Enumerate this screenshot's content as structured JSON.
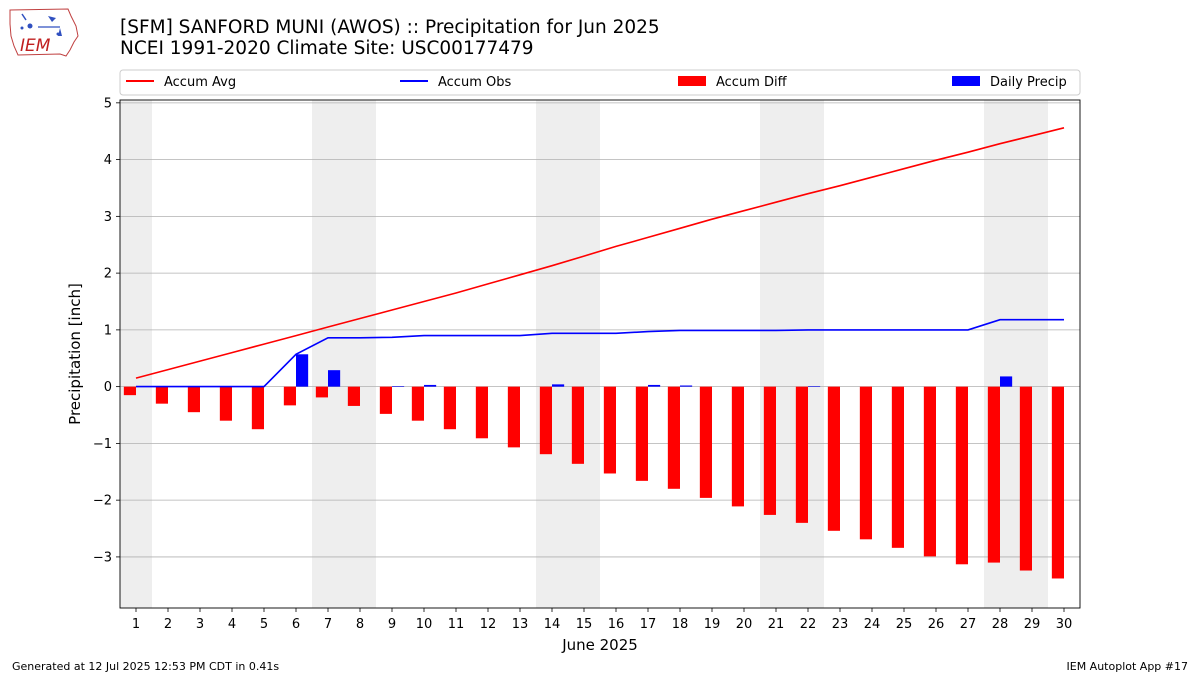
{
  "header": {
    "logo_text": "IEM",
    "title_line1": "[SFM] SANFORD MUNI (AWOS) :: Precipitation for Jun 2025",
    "title_line2": "NCEI 1991-2020 Climate Site: USC00177479"
  },
  "footer": {
    "generated": "Generated at 12 Jul 2025 12:53 PM CDT in 0.41s",
    "app": "IEM Autoplot App #17"
  },
  "colors": {
    "accum_avg": "#ff0000",
    "accum_obs": "#0000ff",
    "accum_diff": "#ff0000",
    "daily_precip": "#0000ff",
    "weekend_shade": "#eeeeee",
    "grid": "#b0b0b0"
  },
  "chart_data": {
    "type": "bar",
    "xlabel": "June 2025",
    "ylabel": "Precipitation [inch]",
    "ylim": [
      -3.9,
      5.05
    ],
    "yticks": [
      5,
      4,
      3,
      2,
      1,
      0,
      -1,
      -2,
      -3
    ],
    "ytick_labels": [
      "5",
      "4",
      "3",
      "2",
      "1",
      "0",
      "−1",
      "−2",
      "−3"
    ],
    "grid": true,
    "legend_position": "top",
    "legend": [
      {
        "label": "Accum Avg",
        "kind": "line",
        "color": "#ff0000"
      },
      {
        "label": "Accum Obs",
        "kind": "line",
        "color": "#0000ff"
      },
      {
        "label": "Accum Diff",
        "kind": "bar",
        "color": "#ff0000"
      },
      {
        "label": "Daily Precip",
        "kind": "bar",
        "color": "#0000ff"
      }
    ],
    "x": [
      1,
      2,
      3,
      4,
      5,
      6,
      7,
      8,
      9,
      10,
      11,
      12,
      13,
      14,
      15,
      16,
      17,
      18,
      19,
      20,
      21,
      22,
      23,
      24,
      25,
      26,
      27,
      28,
      29,
      30
    ],
    "weekend_days": [
      1,
      7,
      8,
      14,
      15,
      21,
      22,
      28,
      29
    ],
    "series": [
      {
        "name": "Accum Avg",
        "type": "line",
        "values": [
          0.15,
          0.3,
          0.45,
          0.6,
          0.75,
          0.9,
          1.05,
          1.2,
          1.35,
          1.5,
          1.65,
          1.81,
          1.97,
          2.13,
          2.3,
          2.47,
          2.63,
          2.79,
          2.95,
          3.1,
          3.25,
          3.4,
          3.54,
          3.69,
          3.84,
          3.99,
          4.13,
          4.28,
          4.42,
          4.56
        ]
      },
      {
        "name": "Accum Obs",
        "type": "line",
        "values": [
          0.0,
          0.0,
          0.0,
          0.0,
          0.0,
          0.57,
          0.86,
          0.86,
          0.87,
          0.9,
          0.9,
          0.9,
          0.9,
          0.94,
          0.94,
          0.94,
          0.97,
          0.99,
          0.99,
          0.99,
          0.99,
          1.0,
          1.0,
          1.0,
          1.0,
          1.0,
          1.0,
          1.18,
          1.18,
          1.18
        ]
      },
      {
        "name": "Accum Diff",
        "type": "bar",
        "values": [
          -0.15,
          -0.3,
          -0.45,
          -0.6,
          -0.75,
          -0.33,
          -0.19,
          -0.34,
          -0.48,
          -0.6,
          -0.75,
          -0.91,
          -1.07,
          -1.19,
          -1.36,
          -1.53,
          -1.66,
          -1.8,
          -1.96,
          -2.11,
          -2.26,
          -2.4,
          -2.54,
          -2.69,
          -2.84,
          -2.99,
          -3.13,
          -3.1,
          -3.24,
          -3.38
        ]
      },
      {
        "name": "Daily Precip",
        "type": "bar",
        "values": [
          0,
          0,
          0,
          0,
          0,
          0.57,
          0.29,
          0,
          0.01,
          0.03,
          0,
          0,
          0,
          0.04,
          0,
          0,
          0.03,
          0.02,
          0,
          0,
          0,
          0.01,
          0,
          0,
          0,
          0,
          0,
          0.18,
          0,
          0
        ]
      }
    ]
  }
}
